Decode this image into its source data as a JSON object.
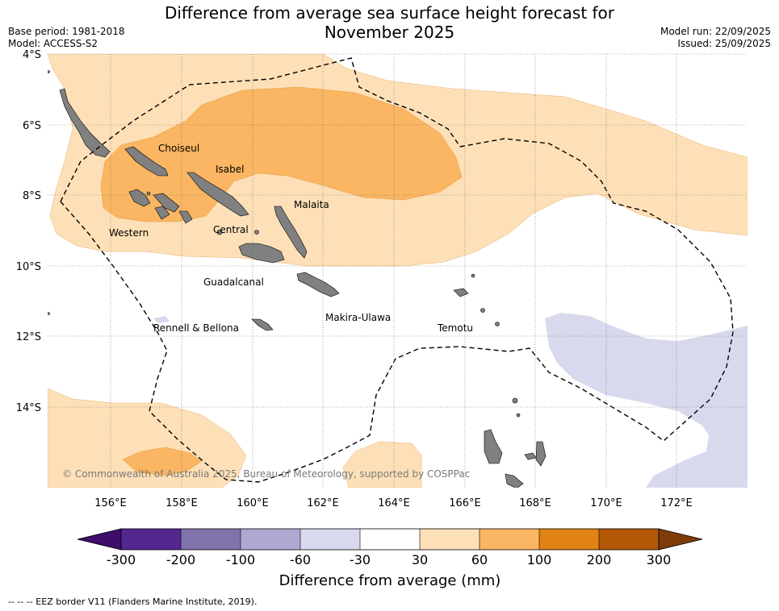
{
  "header": {
    "title_line1": "Difference from average sea surface height forecast for",
    "title_line2": "November 2025",
    "base_period": "Base period: 1981-2018",
    "model": "Model: ACCESS-S2",
    "model_run": "Model run: 22/09/2025",
    "issued": "Issued: 25/09/2025"
  },
  "map": {
    "lat_ticks": [
      "4°S",
      "6°S",
      "8°S",
      "10°S",
      "12°S",
      "14°S"
    ],
    "lon_ticks": [
      "156°E",
      "158°E",
      "160°E",
      "162°E",
      "164°E",
      "166°E",
      "168°E",
      "170°E",
      "172°E"
    ],
    "regions": [
      "Choiseul",
      "Isabel",
      "Malaita",
      "Western",
      "Central",
      "Guadalcanal",
      "Makira-Ulawa",
      "Rennell & Bellona",
      "Temotu"
    ],
    "copyright": "© Commonwealth of Australia 2025, Bureau of Meteorology, supported by COSPPac",
    "colors": {
      "land": "#808080",
      "band_30_60": "#fde0b7",
      "band_60_100": "#fab662",
      "band_neg60_neg30": "#d8d9ec",
      "eez_line": "#000000"
    }
  },
  "colorbar": {
    "ticks": [
      "-300",
      "-200",
      "-100",
      "-60",
      "-30",
      "30",
      "60",
      "100",
      "200",
      "300"
    ],
    "colors": [
      "#3f0d6b",
      "#54278f",
      "#8073ac",
      "#b0a8d2",
      "#d8d9ec",
      "#ffffff",
      "#fde0b7",
      "#fab662",
      "#e08214",
      "#b35806",
      "#7f3b08"
    ],
    "label": "Difference from average (mm)"
  },
  "legend": {
    "eez_note": "--  --  -- EEZ border V11 (Flanders Marine Institute, 2019)."
  }
}
